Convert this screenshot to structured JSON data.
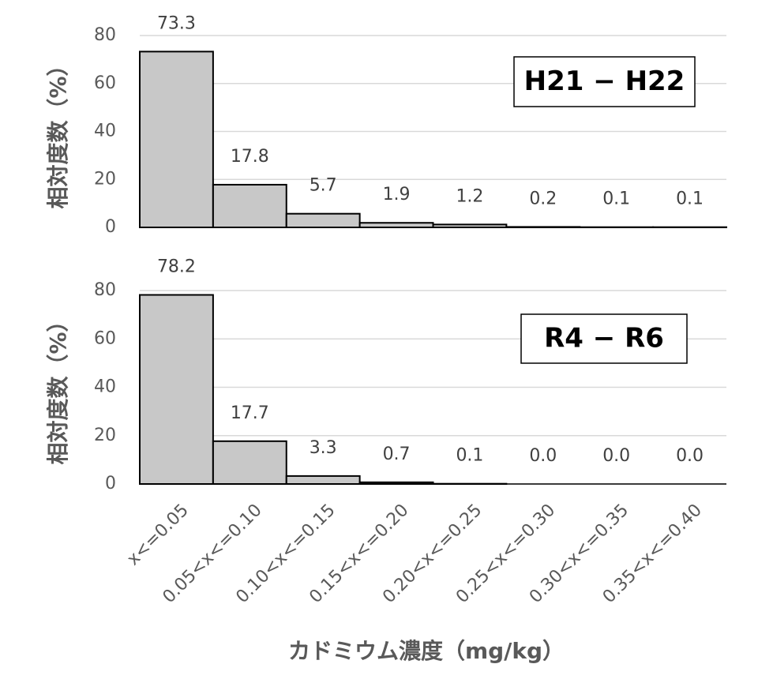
{
  "chart_data": [
    {
      "type": "bar",
      "y_label": "相対度数（%）",
      "annotation": "H21 − H22",
      "values": [
        73.3,
        17.8,
        5.7,
        1.9,
        1.2,
        0.2,
        0.1,
        0.1
      ],
      "value_labels": [
        "73.3",
        "17.8",
        "5.7",
        "1.9",
        "1.2",
        "0.2",
        "0.1",
        "0.1"
      ],
      "color": "#c8c8c8",
      "ylim": [
        0,
        80
      ],
      "yticks": [
        0,
        20,
        40,
        60,
        80
      ],
      "grid": true
    },
    {
      "type": "bar",
      "y_label": "相対度数（%）",
      "annotation": "R4 − R6",
      "x_label": "カドミウム濃度（mg/kg）",
      "categories": [
        "x<=0.05",
        "0.05<x<=0.10",
        "0.10<x<=0.15",
        "0.15<x<=0.20",
        "0.20<x<=0.25",
        "0.25<x<=0.30",
        "0.30<x<=0.35",
        "0.35<x<=0.40"
      ],
      "values": [
        78.2,
        17.7,
        3.3,
        0.7,
        0.1,
        0,
        0,
        0
      ],
      "value_labels": [
        "78.2",
        "17.7",
        "3.3",
        "0.7",
        "0.1",
        "0.0",
        "0.0",
        "0.0"
      ],
      "color": "#c8c8c8",
      "ylim": [
        0,
        80
      ],
      "yticks": [
        0,
        20,
        40,
        60,
        80
      ],
      "grid": true
    }
  ]
}
